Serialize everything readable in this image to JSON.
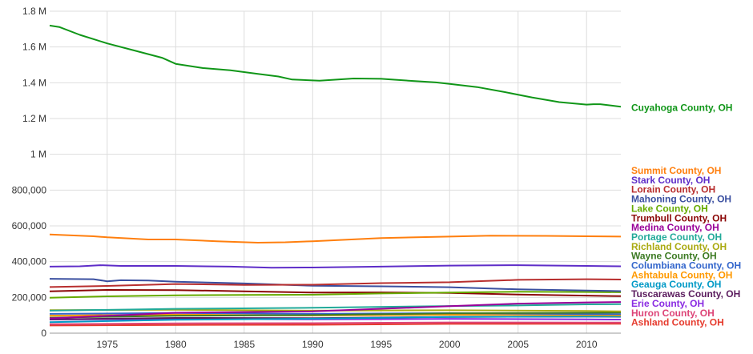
{
  "chart_data": {
    "type": "line",
    "title": "",
    "xlabel": "",
    "ylabel": "",
    "xlim": [
      1970.8,
      2012.5
    ],
    "ylim": [
      0,
      1800000
    ],
    "grid": true,
    "legend_placement": "right, at line ends",
    "x_ticks": [
      1975,
      1980,
      1985,
      1990,
      1995,
      2000,
      2005,
      2010
    ],
    "y_ticks": [
      {
        "value": 0,
        "label": "0"
      },
      {
        "value": 200000,
        "label": "200,000"
      },
      {
        "value": 400000,
        "label": "400,000"
      },
      {
        "value": 600000,
        "label": "600,000"
      },
      {
        "value": 800000,
        "label": "800,000"
      },
      {
        "value": 1000000,
        "label": "1 M"
      },
      {
        "value": 1200000,
        "label": "1.2 M"
      },
      {
        "value": 1400000,
        "label": "1.4 M"
      },
      {
        "value": 1600000,
        "label": "1.6 M"
      },
      {
        "value": 1800000,
        "label": "1.8 M"
      }
    ],
    "series": [
      {
        "name": "Cuyahoga County, OH",
        "color": "#109618",
        "label_anchor": 1265000,
        "points": [
          [
            1970.8,
            1720000
          ],
          [
            1971.5,
            1712000
          ],
          [
            1973,
            1668000
          ],
          [
            1975,
            1620000
          ],
          [
            1977,
            1580000
          ],
          [
            1979,
            1540000
          ],
          [
            1980,
            1506000
          ],
          [
            1982,
            1482000
          ],
          [
            1984,
            1470000
          ],
          [
            1986,
            1450000
          ],
          [
            1987.5,
            1435000
          ],
          [
            1988.5,
            1418000
          ],
          [
            1990.5,
            1412000
          ],
          [
            1993,
            1424000
          ],
          [
            1995,
            1422000
          ],
          [
            1997,
            1412000
          ],
          [
            1999,
            1402000
          ],
          [
            2000,
            1394000
          ],
          [
            2002,
            1376000
          ],
          [
            2004,
            1348000
          ],
          [
            2006,
            1318000
          ],
          [
            2008,
            1292000
          ],
          [
            2010,
            1278000
          ],
          [
            2010.5,
            1280000
          ],
          [
            2011,
            1280000
          ],
          [
            2012.5,
            1266000
          ]
        ]
      },
      {
        "name": "Summit County, OH",
        "color": "#ff7f0e",
        "label_anchor": 545000,
        "points": [
          [
            1970.8,
            552000
          ],
          [
            1974,
            542000
          ],
          [
            1975,
            536000
          ],
          [
            1978,
            524000
          ],
          [
            1980,
            524000
          ],
          [
            1983,
            514000
          ],
          [
            1986,
            506000
          ],
          [
            1988,
            508000
          ],
          [
            1990,
            514000
          ],
          [
            1995,
            532000
          ],
          [
            2000,
            540000
          ],
          [
            2003,
            545000
          ],
          [
            2007,
            544000
          ],
          [
            2010,
            542000
          ],
          [
            2012.5,
            540000
          ]
        ]
      },
      {
        "name": "Stark County, OH",
        "color": "#5e2dc8",
        "label_anchor": 540000,
        "points": [
          [
            1970.8,
            372000
          ],
          [
            1973,
            374000
          ],
          [
            1974.5,
            380000
          ],
          [
            1976,
            376000
          ],
          [
            1980,
            376000
          ],
          [
            1984,
            372000
          ],
          [
            1987,
            366000
          ],
          [
            1990,
            367000
          ],
          [
            1995,
            372000
          ],
          [
            2000,
            378000
          ],
          [
            2005,
            380000
          ],
          [
            2010,
            376000
          ],
          [
            2012.5,
            374000
          ]
        ]
      },
      {
        "name": "Lorain County, OH",
        "color": "#b82e2e",
        "label_anchor": 535000,
        "points": [
          [
            1970.8,
            258000
          ],
          [
            1975,
            264000
          ],
          [
            1980,
            275000
          ],
          [
            1985,
            270000
          ],
          [
            1990,
            271000
          ],
          [
            1995,
            280000
          ],
          [
            2000,
            285000
          ],
          [
            2005,
            298000
          ],
          [
            2010,
            302000
          ],
          [
            2012.5,
            300000
          ]
        ]
      },
      {
        "name": "Mahoning County, OH",
        "color": "#3a4fa0",
        "label_anchor": 530000,
        "points": [
          [
            1970.8,
            304000
          ],
          [
            1974,
            302000
          ],
          [
            1975,
            290000
          ],
          [
            1976,
            296000
          ],
          [
            1978,
            294000
          ],
          [
            1980,
            288000
          ],
          [
            1985,
            278000
          ],
          [
            1990,
            265000
          ],
          [
            1995,
            262000
          ],
          [
            2000,
            257000
          ],
          [
            2005,
            245000
          ],
          [
            2010,
            238000
          ],
          [
            2012.5,
            235000
          ]
        ]
      },
      {
        "name": "Lake County, OH",
        "color": "#66aa00",
        "label_anchor": 525000,
        "points": [
          [
            1970.8,
            198000
          ],
          [
            1975,
            206000
          ],
          [
            1980,
            212000
          ],
          [
            1985,
            214000
          ],
          [
            1990,
            215000
          ],
          [
            1995,
            222000
          ],
          [
            2000,
            227000
          ],
          [
            2005,
            232000
          ],
          [
            2010,
            230000
          ],
          [
            2012.5,
            229000
          ]
        ]
      },
      {
        "name": "Trumbull County, OH",
        "color": "#8b0707",
        "label_anchor": 520000,
        "points": [
          [
            1970.8,
            234000
          ],
          [
            1975,
            242000
          ],
          [
            1980,
            241000
          ],
          [
            1985,
            234000
          ],
          [
            1990,
            227000
          ],
          [
            1995,
            228000
          ],
          [
            2000,
            225000
          ],
          [
            2005,
            216000
          ],
          [
            2010,
            210000
          ],
          [
            2012.5,
            207000
          ]
        ]
      },
      {
        "name": "Medina County, OH",
        "color": "#990099",
        "label_anchor": 515000,
        "points": [
          [
            1970.8,
            83000
          ],
          [
            1980,
            114000
          ],
          [
            1990,
            122000
          ],
          [
            2000,
            151000
          ],
          [
            2005,
            165000
          ],
          [
            2010,
            172000
          ],
          [
            2012.5,
            174000
          ]
        ]
      },
      {
        "name": "Portage County, OH",
        "color": "#22aa99",
        "label_anchor": 510000,
        "points": [
          [
            1970.8,
            126000
          ],
          [
            1980,
            136000
          ],
          [
            1990,
            142000
          ],
          [
            2000,
            152000
          ],
          [
            2005,
            155000
          ],
          [
            2010,
            161000
          ],
          [
            2012.5,
            162000
          ]
        ]
      },
      {
        "name": "Richland County, OH",
        "color": "#aaaa11",
        "label_anchor": 505000,
        "points": [
          [
            1970.8,
            129000
          ],
          [
            1980,
            131000
          ],
          [
            1990,
            126000
          ],
          [
            2000,
            128000
          ],
          [
            2010,
            124000
          ],
          [
            2012.5,
            122000
          ]
        ]
      },
      {
        "name": "Wayne County, OH",
        "color": "#3c7a23",
        "label_anchor": 500000,
        "points": [
          [
            1970.8,
            87000
          ],
          [
            1980,
            97000
          ],
          [
            1990,
            101000
          ],
          [
            2000,
            111000
          ],
          [
            2010,
            114000
          ],
          [
            2012.5,
            115000
          ]
        ]
      },
      {
        "name": "Columbiana County, OH",
        "color": "#3366cc",
        "label_anchor": 495000,
        "points": [
          [
            1970.8,
            108000
          ],
          [
            1980,
            113000
          ],
          [
            1990,
            108000
          ],
          [
            2000,
            112000
          ],
          [
            2010,
            107000
          ],
          [
            2012.5,
            106000
          ]
        ]
      },
      {
        "name": "Ashtabula County, OH",
        "color": "#ff9900",
        "label_anchor": 490000,
        "points": [
          [
            1970.8,
            98000
          ],
          [
            1980,
            104000
          ],
          [
            1990,
            99000
          ],
          [
            2000,
            103000
          ],
          [
            2010,
            101000
          ],
          [
            2012.5,
            100000
          ]
        ]
      },
      {
        "name": "Geauga County, OH",
        "color": "#0099c6",
        "label_anchor": 485000,
        "points": [
          [
            1970.8,
            62000
          ],
          [
            1980,
            75000
          ],
          [
            1990,
            81000
          ],
          [
            2000,
            91000
          ],
          [
            2010,
            93000
          ],
          [
            2012.5,
            93000
          ]
        ]
      },
      {
        "name": "Tuscarawas County, OH",
        "color": "#5b1c5e",
        "label_anchor": 480000,
        "points": [
          [
            1970.8,
            77000
          ],
          [
            1980,
            85000
          ],
          [
            1990,
            84000
          ],
          [
            2000,
            91000
          ],
          [
            2010,
            93000
          ],
          [
            2012.5,
            92000
          ]
        ]
      },
      {
        "name": "Erie County, OH",
        "color": "#8a2be2",
        "label_anchor": 475000,
        "points": [
          [
            1970.8,
            76000
          ],
          [
            1980,
            80000
          ],
          [
            1990,
            77000
          ],
          [
            2000,
            80000
          ],
          [
            2010,
            77000
          ],
          [
            2012.5,
            76000
          ]
        ]
      },
      {
        "name": "Huron County, OH",
        "color": "#dd4477",
        "label_anchor": 470000,
        "points": [
          [
            1970.8,
            50000
          ],
          [
            1980,
            55000
          ],
          [
            1990,
            56000
          ],
          [
            2000,
            60000
          ],
          [
            2010,
            59000
          ],
          [
            2012.5,
            59000
          ]
        ]
      },
      {
        "name": "Ashland County, OH",
        "color": "#e63b2e",
        "label_anchor": 465000,
        "points": [
          [
            1970.8,
            43000
          ],
          [
            1980,
            46000
          ],
          [
            1990,
            47000
          ],
          [
            2000,
            52000
          ],
          [
            2010,
            53000
          ],
          [
            2012.5,
            53000
          ]
        ]
      }
    ]
  }
}
